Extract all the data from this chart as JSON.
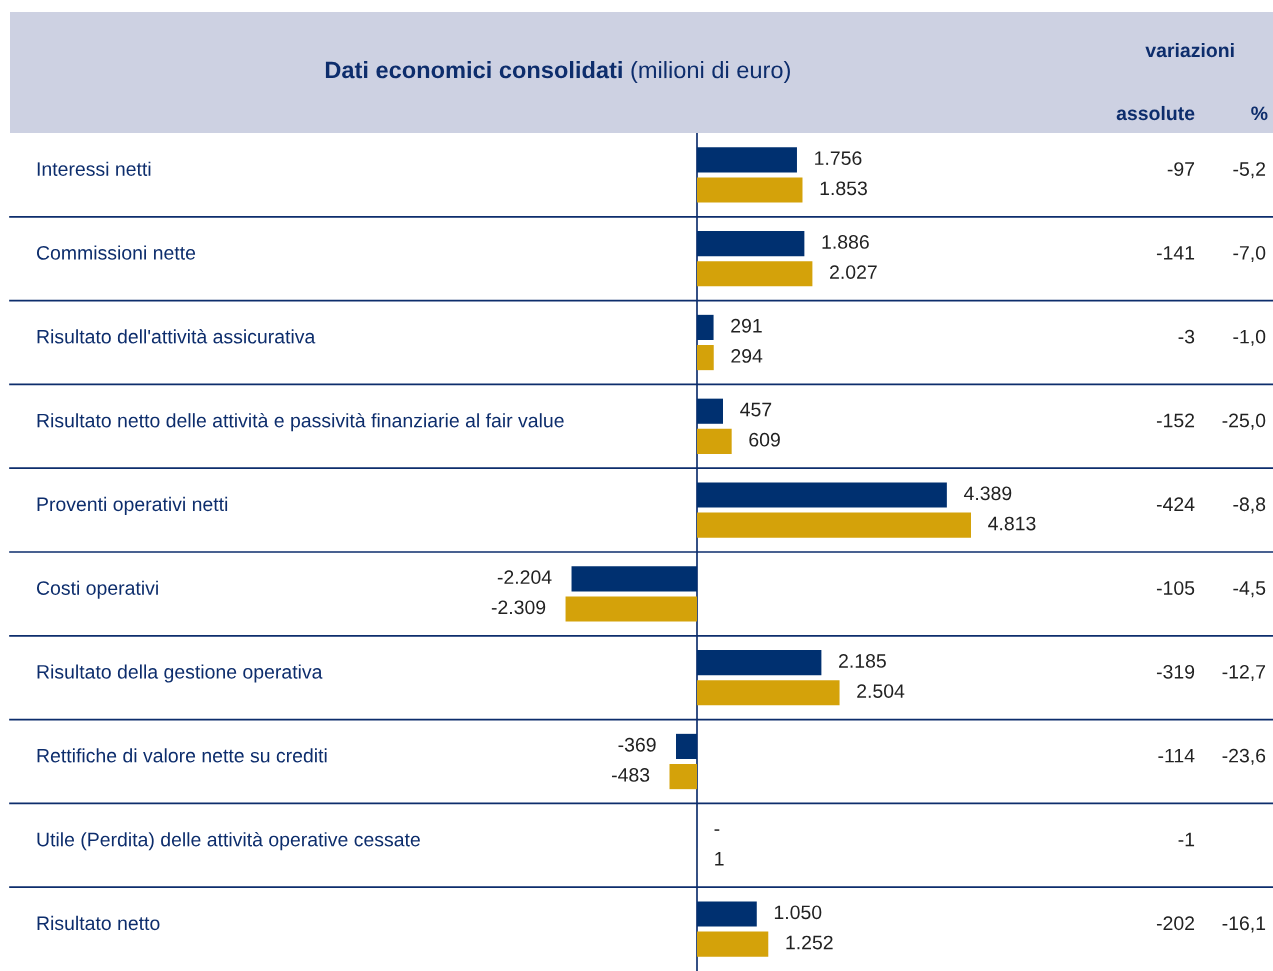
{
  "chart_data": {
    "type": "bar",
    "orientation": "horizontal",
    "title": "Dati economici consolidati",
    "subtitle": "(milioni di euro)",
    "categories": [
      "Interessi netti",
      "Commissioni nette",
      "Risultato dell'attività assicurativa",
      "Risultato netto delle attività e passività finanziarie al fair value",
      "Proventi operativi netti",
      "Costi operativi",
      "Risultato della gestione operativa",
      "Rettifiche di valore nette su crediti",
      "Utile (Perdita) delle attività operative cessate",
      "Risultato netto"
    ],
    "series": [
      {
        "color": "#003070",
        "values": [
          1756,
          1886,
          291,
          457,
          4389,
          -2204,
          2185,
          -369,
          null,
          1050
        ],
        "value_labels": [
          "1.756",
          "1.886",
          "291",
          "457",
          "4.389",
          "-2.204",
          "2.185",
          "-369",
          "-",
          "1.050"
        ]
      },
      {
        "color": "#d4a20a",
        "values": [
          1853,
          2027,
          294,
          609,
          4813,
          -2309,
          2504,
          -483,
          1,
          1252
        ],
        "value_labels": [
          "1.853",
          "2.027",
          "294",
          "609",
          "4.813",
          "-2.309",
          "2.504",
          "-483",
          "1",
          "1.252"
        ]
      }
    ],
    "ref_lines": [
      {
        "axis": "x",
        "value": 0,
        "color": "#0d2d6c"
      }
    ],
    "annotations": [
      "variazioni",
      "assolute",
      "%",
      "-97",
      "-141",
      "-3",
      "-152",
      "-424",
      "-105",
      "-319",
      "-114",
      "-1",
      "-202",
      "-5,2",
      "-7,0",
      "-1,0",
      "-25,0",
      "-8,8",
      "-4,5",
      "-12,7",
      "-23,6",
      "-16,1"
    ]
  }
}
